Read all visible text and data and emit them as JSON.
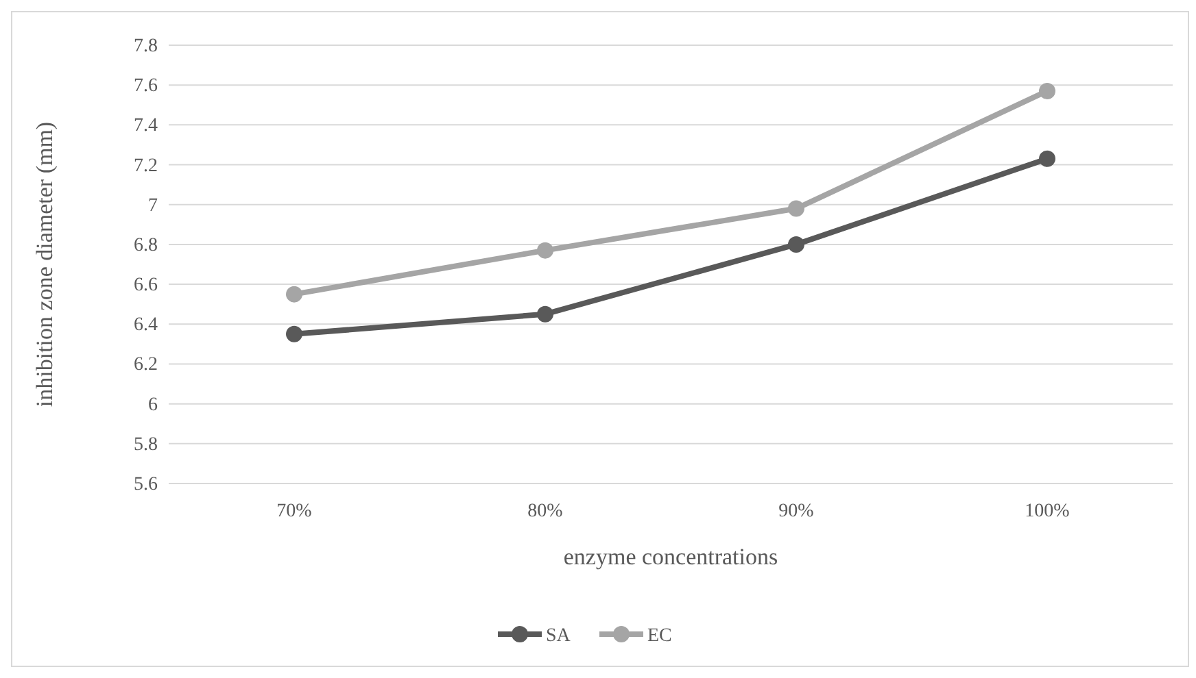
{
  "chart_data": {
    "type": "line",
    "xlabel": "enzyme concentrations",
    "ylabel": "inhibition zone diameter (mm)",
    "categories": [
      "70%",
      "80%",
      "90%",
      "100%"
    ],
    "series": [
      {
        "name": "SA",
        "color": "#595959",
        "values": [
          6.35,
          6.45,
          6.8,
          7.23
        ]
      },
      {
        "name": "EC",
        "color": "#a5a5a5",
        "values": [
          6.55,
          6.77,
          6.98,
          7.57
        ]
      }
    ],
    "ylim": [
      5.6,
      7.8
    ],
    "yticks": [
      5.6,
      5.8,
      6,
      6.2,
      6.4,
      6.6,
      6.8,
      7,
      7.2,
      7.4,
      7.6,
      7.8
    ],
    "grid": "y",
    "legend": "bottom",
    "marker": "circle",
    "line_style": "solid"
  }
}
